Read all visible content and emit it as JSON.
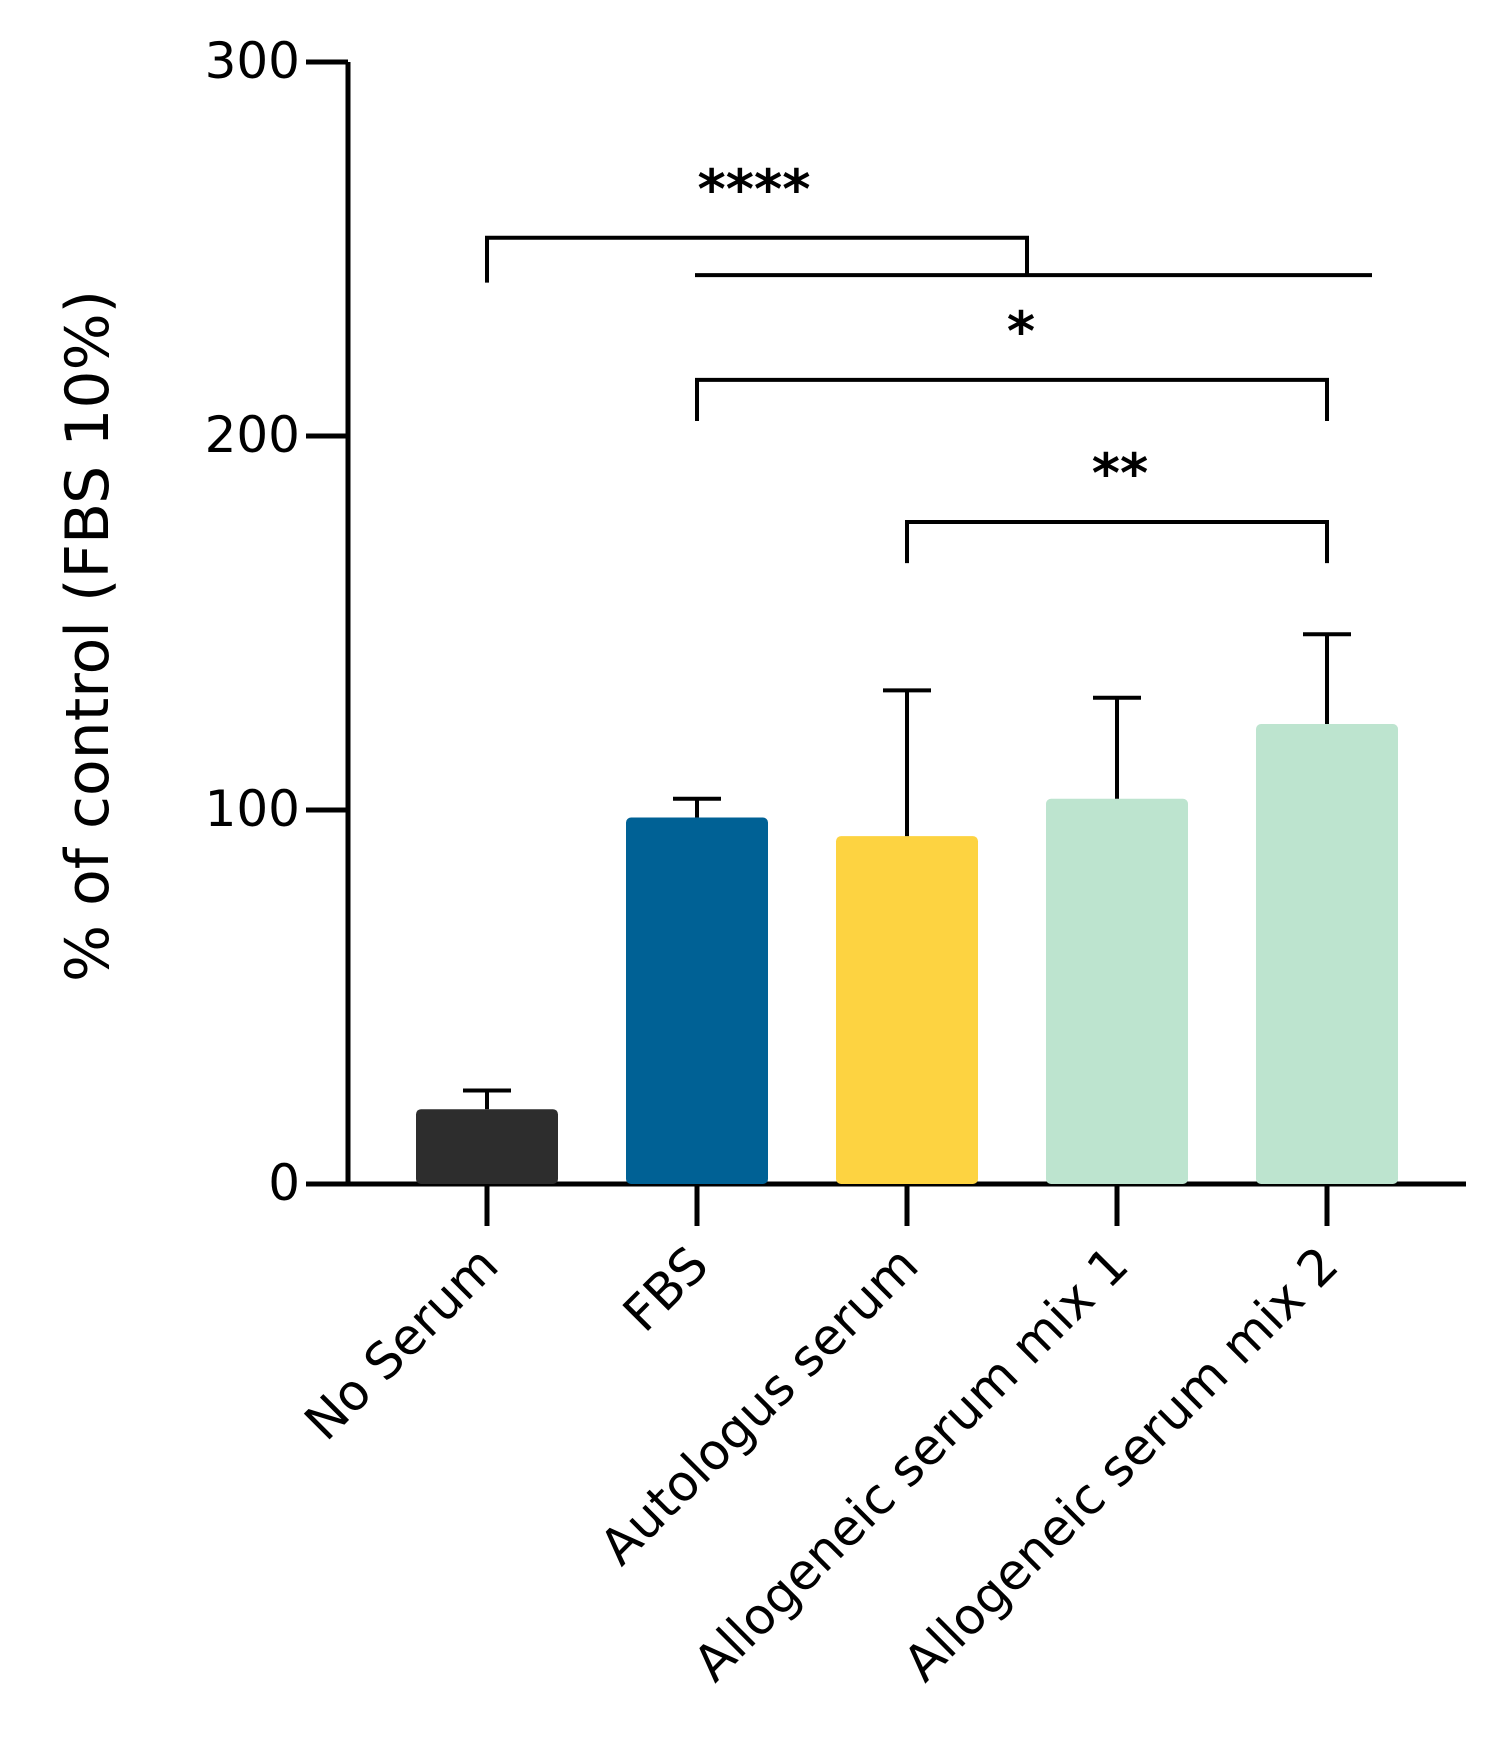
{
  "chart_data": {
    "type": "bar",
    "title": "",
    "xlabel": "",
    "ylabel": "% of control (FBS 10%)",
    "ylim": [
      0,
      300
    ],
    "yticks": [
      0,
      100,
      200,
      300
    ],
    "categories": [
      "No Serum",
      "FBS",
      "Autologus serum",
      "Allogeneic serum mix 1",
      "Allogeneic serum mix 2"
    ],
    "values": [
      20,
      98,
      93,
      103,
      123
    ],
    "errors": [
      5,
      5,
      39,
      27,
      24
    ],
    "colors": [
      "#2d2d2d",
      "#006195",
      "#fdd341",
      "#bde4cf",
      "#bde4cf"
    ],
    "significance": [
      {
        "label": "****",
        "from": 0,
        "to": [
          1,
          4
        ],
        "note": "No Serum vs FBS–mix 2"
      },
      {
        "label": "*",
        "from": 1,
        "to": [
          4
        ]
      },
      {
        "label": "**",
        "from": 2,
        "to": [
          4
        ]
      }
    ]
  }
}
